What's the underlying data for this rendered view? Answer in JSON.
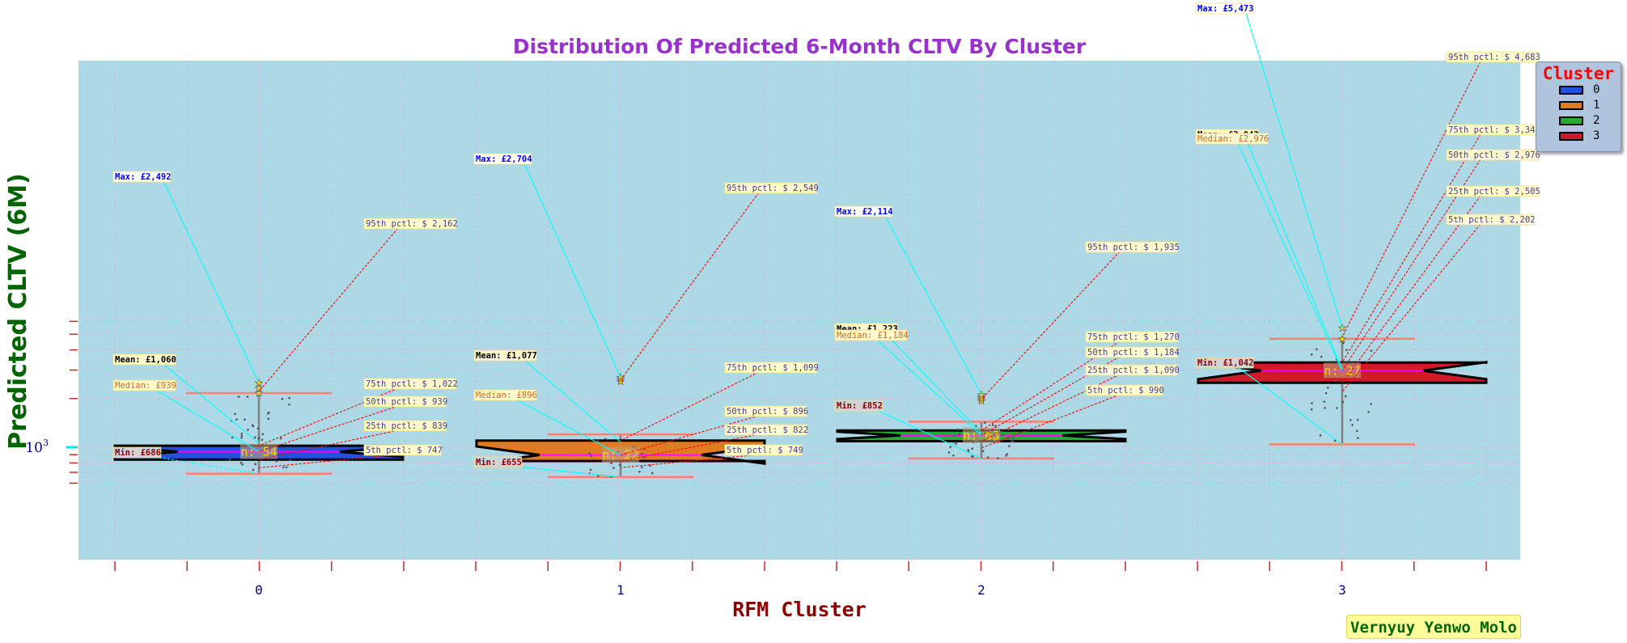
{
  "chart_data": {
    "type": "boxplot",
    "title": "Distribution Of Predicted 6-Month CLTV By Cluster",
    "xlabel": "RFM Cluster",
    "ylabel": "Predicted CLTV (6M)",
    "y_scale": "log",
    "y_tick_label": "10^3",
    "categories": [
      "0",
      "1",
      "2",
      "3"
    ],
    "legend_title": "Cluster",
    "legend_position": "top-right",
    "colors": [
      "#2251e0",
      "#e07b1f",
      "#2aa63a",
      "#cf1a27"
    ],
    "series": [
      {
        "name": "0",
        "n_label": "n: 54",
        "n": 54,
        "mean": 1060,
        "median": 939,
        "min": 686,
        "max": 2492,
        "q1": 839,
        "q3": 1022,
        "p5": 747,
        "p95": 2162,
        "whisker_low": 686,
        "whisker_high": 2162,
        "outliers": [
          2162,
          2320,
          2492
        ],
        "text": {
          "max": "Max: £2,492",
          "mean": "Mean: £1,060",
          "median": "Median: £939",
          "min": "Min: £686",
          "p95": "95th pctl: $ 2,162",
          "p75": "75th pctl: $ 1,022",
          "p50": "50th pctl: $ 939",
          "p25": "25th pctl: $ 839",
          "p5": "5th pctl: $ 747"
        }
      },
      {
        "name": "1",
        "n_label": "n: 22",
        "n": 22,
        "mean": 1077,
        "median": 896,
        "min": 655,
        "max": 2704,
        "q1": 822,
        "q3": 1099,
        "p5": 749,
        "p95": 2549,
        "whisker_low": 655,
        "whisker_high": 1200,
        "outliers": [
          2549,
          2640,
          2704
        ],
        "text": {
          "max": "Max: £2,704",
          "mean": "Mean: £1,077",
          "median": "Median: £896",
          "min": "Min: £655",
          "p95": "95th pctl: $ 2,549",
          "p75": "75th pctl: $ 1,099",
          "p50": "50th pctl: $ 896",
          "p25": "25th pctl: $ 822",
          "p5": "5th pctl: $ 749"
        }
      },
      {
        "name": "2",
        "n_label": "n: 63",
        "n": 63,
        "mean": 1223,
        "median": 1184,
        "min": 852,
        "max": 2114,
        "q1": 1090,
        "q3": 1270,
        "p5": 990,
        "p95": 1935,
        "whisker_low": 852,
        "whisker_high": 1440,
        "outliers": [
          1935,
          1990,
          2050,
          2114
        ],
        "text": {
          "max": "Max: £2,114",
          "mean": "Mean: £1,223",
          "median": "Median: £1,184",
          "min": "Min: £852",
          "p95": "95th pctl: $ 1,935",
          "p75": "75th pctl: $ 1,270",
          "p50": "50th pctl: $ 1,184",
          "p25": "25th pctl: $ 1,090",
          "p5": "5th pctl: $ 990"
        }
      },
      {
        "name": "3",
        "n_label": "n: 27",
        "n": 27,
        "mean": 3042,
        "median": 2976,
        "min": 1042,
        "max": 5473,
        "q1": 2505,
        "q3": 3342,
        "p5": 2202,
        "p95": 4683,
        "whisker_low": 1042,
        "whisker_high": 4683,
        "outliers": [
          4683,
          5473
        ],
        "text": {
          "max": "Max: £5,473",
          "mean": "Mean: £3,042",
          "median": "Median: £2,976",
          "min": "Min: £1,042",
          "p95": "95th pctl: $ 4,683",
          "p75": "75th pctl: $ 3,342",
          "p50": "50th pctl: $ 2,976",
          "p25": "25th pctl: $ 2,505",
          "p5": "5th pctl: $ 2,202"
        }
      }
    ],
    "grid": true,
    "background": "#add8e6"
  },
  "credit": "Vernyuy Yenwo Molo"
}
